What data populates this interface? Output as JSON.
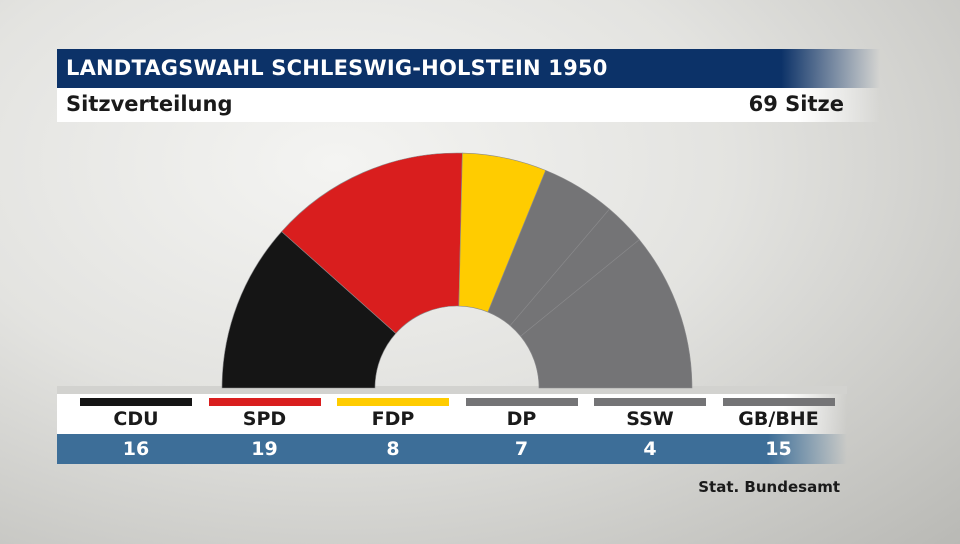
{
  "header": {
    "title": "LANDTAGSWAHL SCHLESWIG-HOLSTEIN 1950",
    "subtitle": "Sitzverteilung",
    "total_seats_label": "69 Sitze"
  },
  "source": "Stat. Bundesamt",
  "chart_data": {
    "type": "pie",
    "subtype": "parliament-half-donut",
    "total": 69,
    "parties": [
      {
        "name": "CDU",
        "value": 16,
        "color": "#151515"
      },
      {
        "name": "SPD",
        "value": 19,
        "color": "#d91e1e"
      },
      {
        "name": "FDP",
        "value": 8,
        "color": "#ffcc00"
      },
      {
        "name": "DP",
        "value": 7,
        "color": "#747476"
      },
      {
        "name": "SSW",
        "value": 4,
        "color": "#747476"
      },
      {
        "name": "GB/BHE",
        "value": 15,
        "color": "#747476"
      }
    ]
  },
  "display_values": [
    "16",
    "19",
    "8",
    "7",
    "4",
    "15"
  ]
}
